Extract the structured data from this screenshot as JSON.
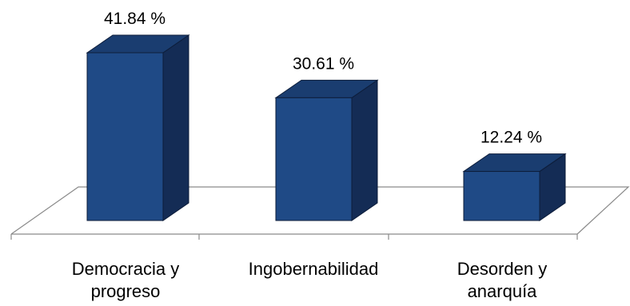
{
  "chart_data": {
    "type": "bar",
    "categories": [
      "Democracia y\nprogreso",
      "Ingobernabilidad",
      "Desorden y\nanarquía"
    ],
    "values": [
      41.84,
      30.61,
      12.24
    ],
    "value_labels": [
      "41.84 %",
      "30.61 %",
      "12.24 %"
    ],
    "title": "",
    "xlabel": "",
    "ylabel": "",
    "ylim": [
      0,
      45
    ],
    "grid": false,
    "legend": "none",
    "colors": {
      "bar_front": "#1f4a86",
      "bar_side": "#142c55",
      "bar_top": "#1a3d70",
      "bar_edge": "#0d1d3a",
      "floor_line": "#8a8a8a"
    }
  }
}
